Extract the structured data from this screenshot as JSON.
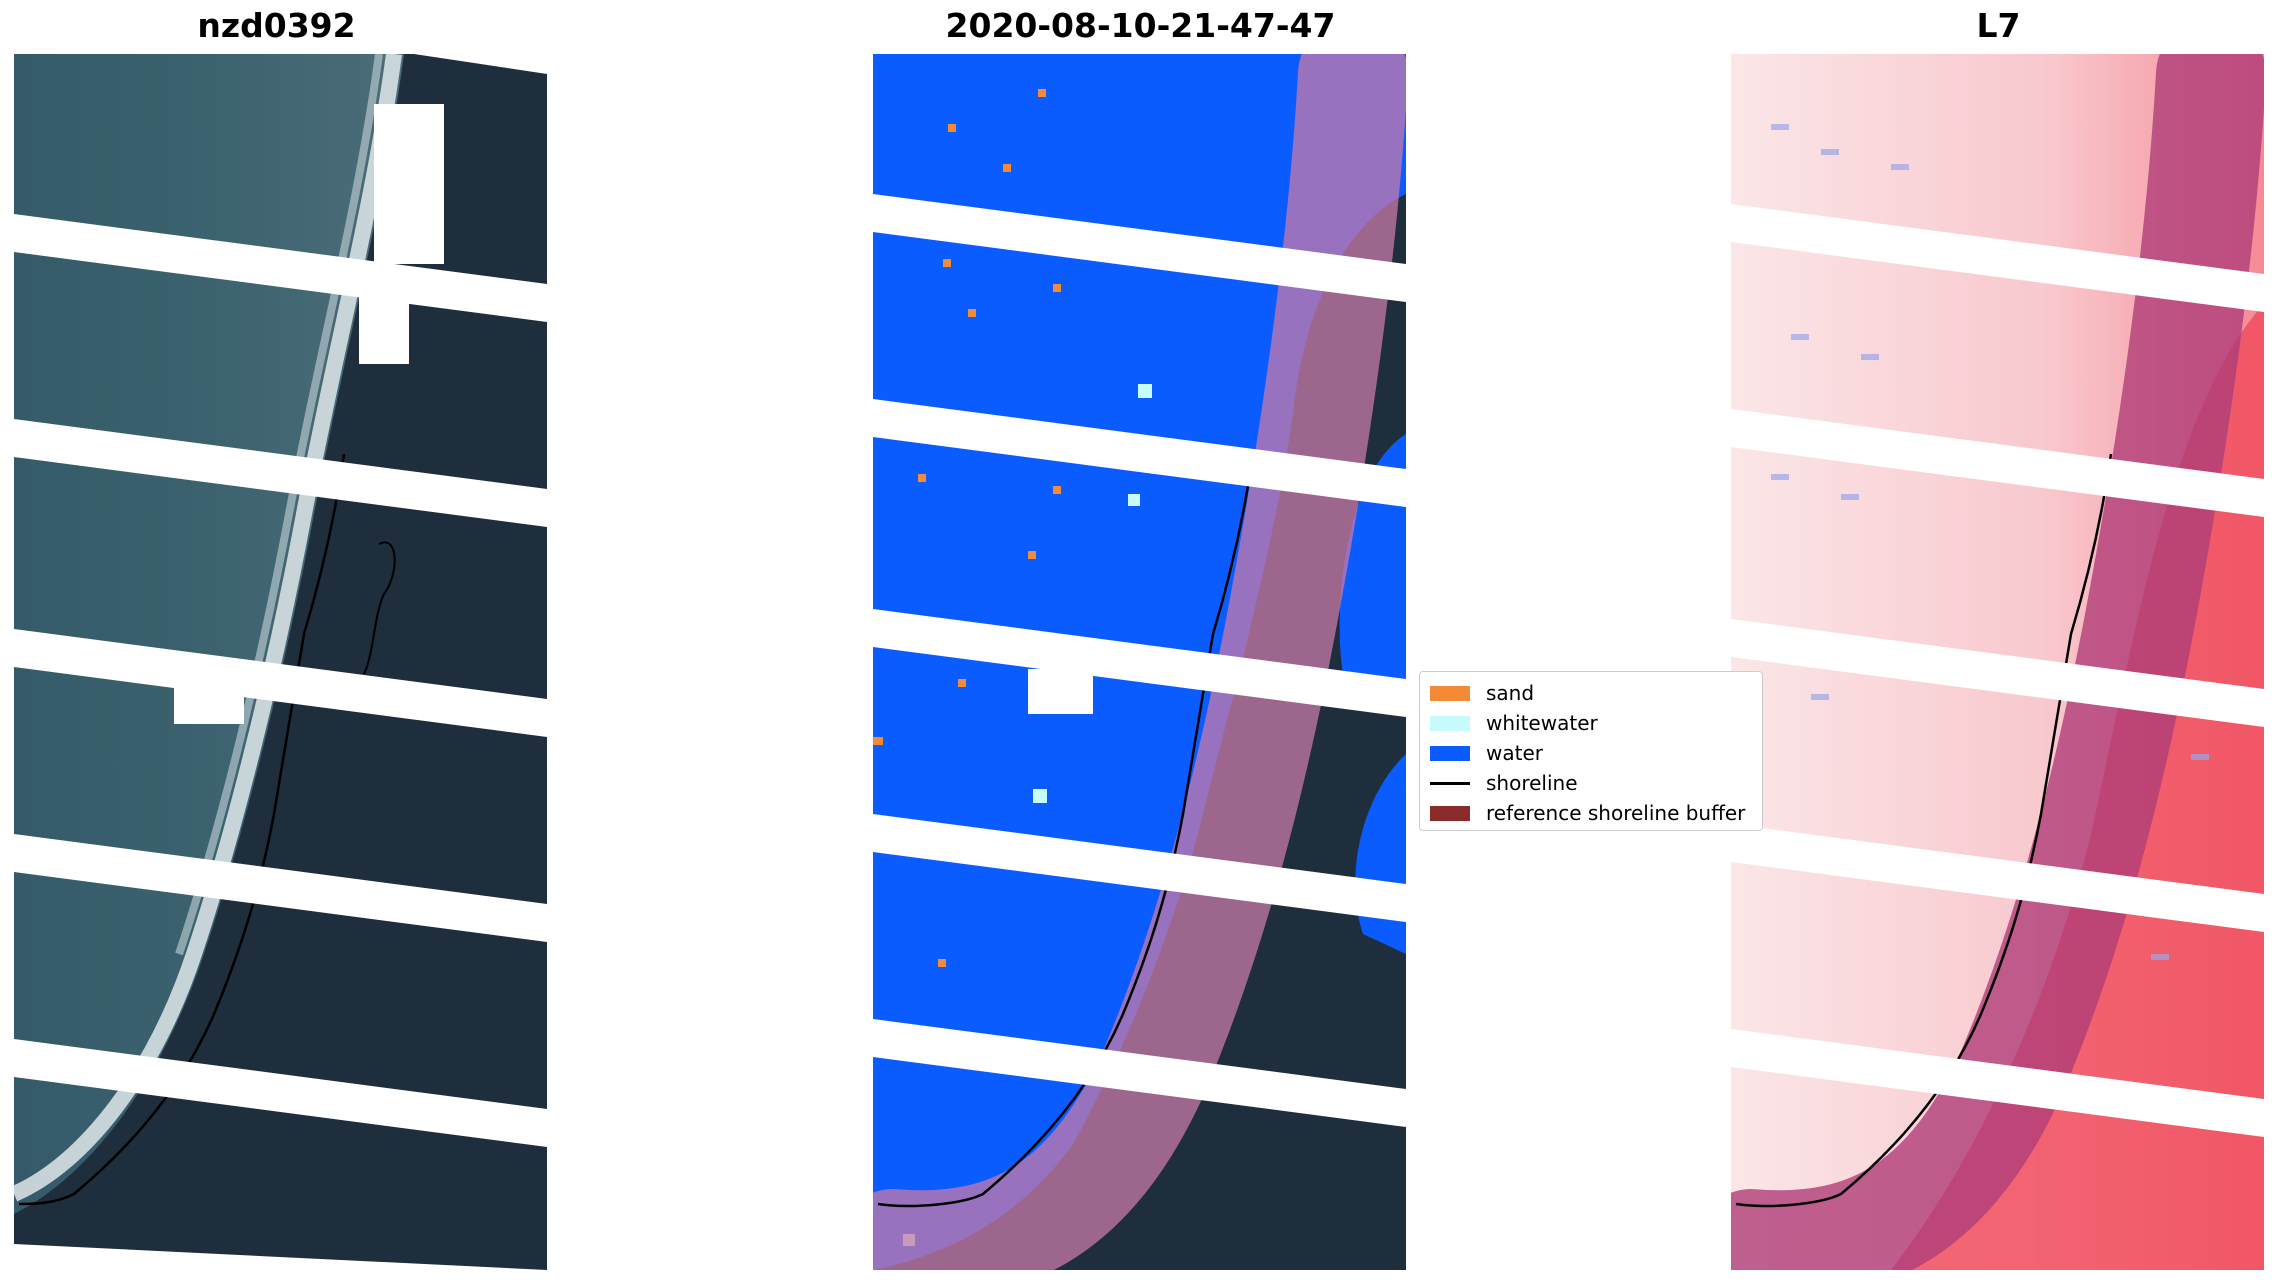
{
  "panels": [
    {
      "title": "nzd0392",
      "kind": "rgb"
    },
    {
      "title": "2020-08-10-21-47-47",
      "kind": "classified"
    },
    {
      "title": "L7",
      "kind": "index"
    }
  ],
  "legend": {
    "items": [
      {
        "label": "sand",
        "color": "#f58a36",
        "type": "patch"
      },
      {
        "label": "whitewater",
        "color": "#c8fbfb",
        "type": "patch"
      },
      {
        "label": "water",
        "color": "#0b5cff",
        "type": "patch"
      },
      {
        "label": "shoreline",
        "color": "#000000",
        "type": "line"
      },
      {
        "label": "reference shoreline buffer",
        "color": "#8b2a2a",
        "type": "patch"
      }
    ]
  },
  "colors": {
    "ocean": "#2f5566",
    "land": "#1f2e3d",
    "surf": "#dfe7ea",
    "water_class": "#0b5cff",
    "buffer": "#8b1a5a",
    "index_land": "#f04a5a",
    "index_sea": "#fbe3e6"
  }
}
